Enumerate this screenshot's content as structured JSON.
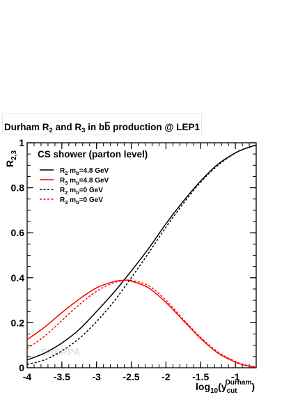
{
  "chart_data": {
    "type": "line",
    "title": "Durham R2 and R3 in bb production @ LEP1",
    "title_parts": {
      "t1": "Durham R",
      "s1": "2",
      "t2": " and R",
      "s2": "3",
      "t3": " in b",
      "bbar": "b",
      "t4": " production @ LEP1"
    },
    "plot_label": "CS shower (parton level)",
    "watermark": "SHERPA",
    "xlabel_parts": {
      "pre": "log",
      "sub10": "10",
      "open": "(y",
      "sub": "cut",
      "sup": "Durham",
      "close": ")"
    },
    "ylabel_parts": {
      "main": "R",
      "sub": "2,3"
    },
    "xlim": [
      -4.0,
      -0.7
    ],
    "ylim": [
      0,
      1.0
    ],
    "xticks": [
      -4,
      -3.5,
      -3,
      -2.5,
      -2,
      -1.5,
      -1
    ],
    "xtick_labels": [
      "-4",
      "-3.5",
      "-3",
      "-2.5",
      "-2",
      "-1.5",
      "-1"
    ],
    "yticks": [
      0,
      0.2,
      0.4,
      0.6,
      0.8,
      1
    ],
    "ytick_labels": [
      "0",
      "0.2",
      "0.4",
      "0.6",
      "0.8",
      "1"
    ],
    "legend_position": "top-left",
    "series": [
      {
        "name": "R2 mb=4.8 GeV",
        "legend": {
          "r": "R",
          "rs": "2",
          "m": " m",
          "ms": "b",
          "rest": "=4.8 GeV"
        },
        "color": "#000000",
        "dashed": false,
        "x": [
          -4.0,
          -3.75,
          -3.5,
          -3.25,
          -3.0,
          -2.75,
          -2.5,
          -2.25,
          -2.0,
          -1.75,
          -1.5,
          -1.25,
          -1.0,
          -0.85,
          -0.7
        ],
        "y": [
          0.035,
          0.065,
          0.11,
          0.17,
          0.25,
          0.335,
          0.43,
          0.53,
          0.64,
          0.74,
          0.83,
          0.905,
          0.955,
          0.975,
          0.99
        ]
      },
      {
        "name": "R3 mb=4.8 GeV",
        "legend": {
          "r": "R",
          "rs": "3",
          "m": " m",
          "ms": "b",
          "rest": "=4.8 GeV"
        },
        "color": "#ff0000",
        "dashed": false,
        "x": [
          -4.0,
          -3.75,
          -3.5,
          -3.25,
          -3.0,
          -2.75,
          -2.6,
          -2.5,
          -2.25,
          -2.0,
          -1.75,
          -1.5,
          -1.25,
          -1.0,
          -0.85,
          -0.7
        ],
        "y": [
          0.125,
          0.18,
          0.245,
          0.305,
          0.355,
          0.383,
          0.389,
          0.385,
          0.355,
          0.29,
          0.21,
          0.13,
          0.065,
          0.025,
          0.01,
          0.002
        ]
      },
      {
        "name": "R2 mb=0 GeV",
        "legend": {
          "r": "R",
          "rs": "2",
          "m": " m",
          "ms": "b",
          "rest": "=0 GeV"
        },
        "color": "#000000",
        "dashed": true,
        "x": [
          -4.0,
          -3.75,
          -3.5,
          -3.25,
          -3.0,
          -2.75,
          -2.5,
          -2.25,
          -2.0,
          -1.75,
          -1.5,
          -1.25,
          -1.0,
          -0.85,
          -0.7
        ],
        "y": [
          0.015,
          0.035,
          0.075,
          0.13,
          0.205,
          0.295,
          0.4,
          0.51,
          0.625,
          0.73,
          0.825,
          0.9,
          0.955,
          0.975,
          0.99
        ]
      },
      {
        "name": "R3 mb=0 GeV",
        "legend": {
          "r": "R",
          "rs": "3",
          "m": " m",
          "ms": "b",
          "rest": "=0 GeV"
        },
        "color": "#ff0000",
        "dashed": true,
        "x": [
          -4.0,
          -3.75,
          -3.5,
          -3.25,
          -3.0,
          -2.75,
          -2.55,
          -2.5,
          -2.25,
          -2.0,
          -1.75,
          -1.5,
          -1.25,
          -1.0,
          -0.85,
          -0.7
        ],
        "y": [
          0.085,
          0.14,
          0.21,
          0.28,
          0.34,
          0.378,
          0.39,
          0.389,
          0.365,
          0.3,
          0.215,
          0.135,
          0.07,
          0.028,
          0.012,
          0.003
        ]
      }
    ]
  }
}
